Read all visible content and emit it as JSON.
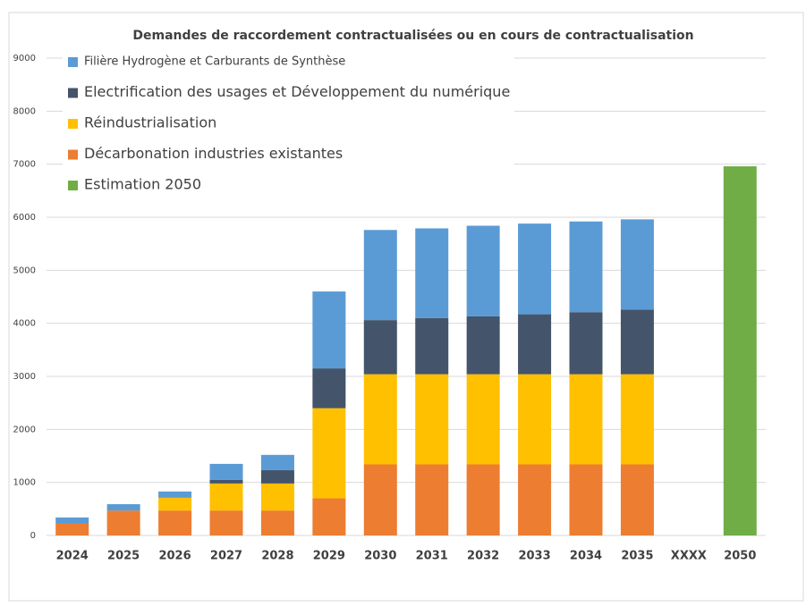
{
  "chart_data": {
    "type": "stacked_bar",
    "title": "Demandes de raccordement contractualisées ou en cours de contractualisation",
    "categories": [
      "2024",
      "2025",
      "2026",
      "2027",
      "2028",
      "2029",
      "2030",
      "2031",
      "2032",
      "2033",
      "2034",
      "2035",
      "XXXX",
      "2050"
    ],
    "series": [
      {
        "name": "Décarbonation industries existantes",
        "color": "#ed7d31",
        "values": [
          220,
          470,
          470,
          470,
          470,
          700,
          1340,
          1340,
          1340,
          1340,
          1340,
          1340,
          null,
          null
        ]
      },
      {
        "name": "Réindustrialisation",
        "color": "#ffc000",
        "values": [
          null,
          null,
          240,
          510,
          510,
          1700,
          1700,
          1700,
          1700,
          1700,
          1700,
          1700,
          null,
          null
        ]
      },
      {
        "name": "Electrification des usages et Développement du numérique",
        "color": "#44546a",
        "values": [
          null,
          null,
          null,
          70,
          250,
          750,
          1020,
          1060,
          1090,
          1130,
          1170,
          1220,
          null,
          null
        ]
      },
      {
        "name": "Filière Hydrogène et Carburants de Synthèse",
        "color": "#5b9bd5",
        "values": [
          120,
          120,
          120,
          300,
          290,
          1450,
          1700,
          1690,
          1710,
          1710,
          1710,
          1700,
          null,
          null
        ]
      },
      {
        "name": "Estimation 2050",
        "color": "#70ad47",
        "values": [
          null,
          null,
          null,
          null,
          null,
          null,
          null,
          null,
          null,
          null,
          null,
          null,
          null,
          6960
        ]
      }
    ],
    "ylim": [
      0,
      9000
    ],
    "yticks": [
      0,
      1000,
      2000,
      3000,
      4000,
      5000,
      6000,
      7000,
      8000,
      9000
    ],
    "grid": true
  }
}
